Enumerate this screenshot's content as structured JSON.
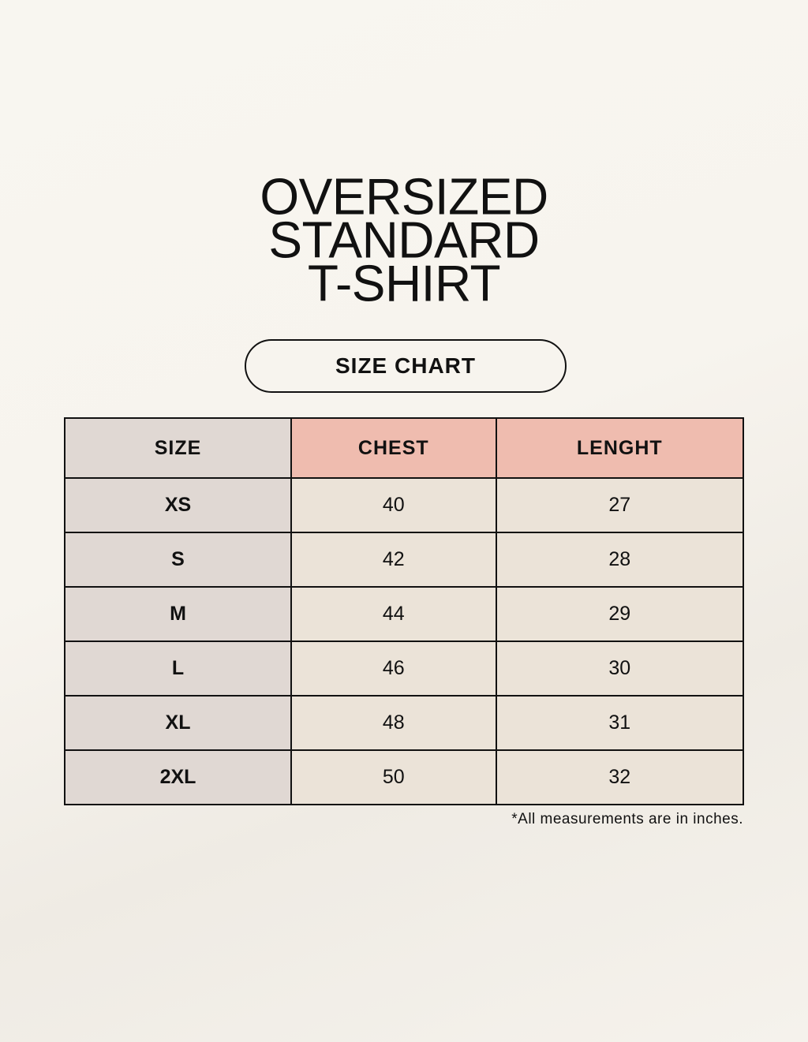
{
  "title_lines": [
    "OVERSIZED",
    "STANDARD",
    "T-SHIRT"
  ],
  "badge": "SIZE CHART",
  "table": {
    "headers": [
      "SIZE",
      "CHEST",
      "LENGHT"
    ],
    "rows": [
      [
        "XS",
        "40",
        "27"
      ],
      [
        "S",
        "42",
        "28"
      ],
      [
        "M",
        "44",
        "29"
      ],
      [
        "L",
        "46",
        "30"
      ],
      [
        "XL",
        "48",
        "31"
      ],
      [
        "2XL",
        "50",
        "32"
      ]
    ]
  },
  "note": "*All measurements are in inches.",
  "colors": {
    "size_column": "#e0d8d3",
    "header_accent": "#efbcaf",
    "body_cells": "#ebe3d8",
    "background": "#f8f6f0"
  }
}
